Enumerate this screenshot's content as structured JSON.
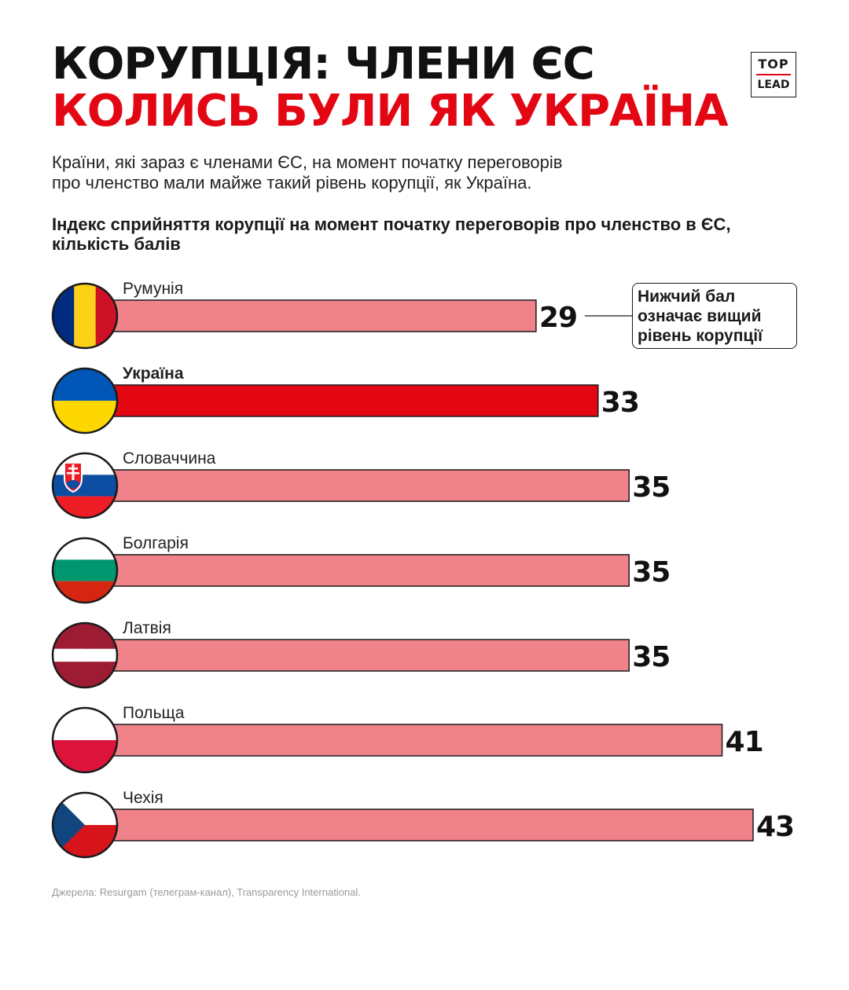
{
  "header": {
    "title_line1": "КОРУПЦІЯ: ЧЛЕНИ ЄС",
    "title_line2": "КОЛИСЬ БУЛИ ЯК УКРАЇНА",
    "subtitle_line1": "Країни, які зараз є членами ЄС, на момент початку переговорів",
    "subtitle_line2": "про членство мали майже такий рівень корупції, як Україна."
  },
  "logo": {
    "top": "TOP",
    "bottom": "LEAD"
  },
  "note": "Нижчий бал\nозначає вищий\nрівень корупції",
  "footer": {
    "source": "Джерела: Resurgam (телеграм-канал), Transparency International."
  },
  "colors": {
    "title_accent": "#e30613",
    "bar_default": "#f0838a",
    "bar_highlight": "#e30613"
  },
  "chart_data": {
    "type": "bar",
    "orientation": "horizontal",
    "title": "Індекс сприйняття корупції на момент початку переговорів про членство в ЄС, кількість балів",
    "categories": [
      "Румунія",
      "Україна",
      "Словаччина",
      "Болгарія",
      "Латвія",
      "Польща",
      "Чехія"
    ],
    "values": [
      29,
      33,
      35,
      35,
      35,
      41,
      43
    ],
    "highlight": "Україна",
    "flags": [
      "romania-flag",
      "ukraine-flag",
      "slovakia-flag",
      "bulgaria-flag",
      "latvia-flag",
      "poland-flag",
      "czechia-flag"
    ],
    "xlim": [
      0,
      43
    ],
    "grid": false,
    "legend": "none"
  }
}
